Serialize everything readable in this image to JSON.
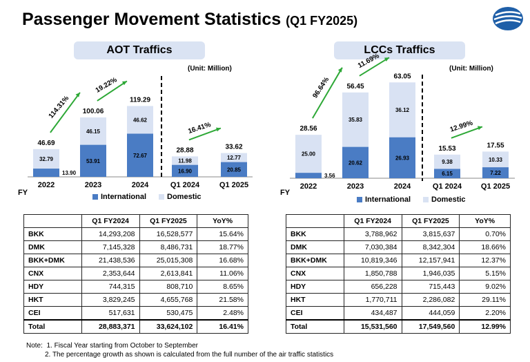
{
  "title": "Passenger Movement Statistics",
  "subtitle": "(Q1 FY2025)",
  "colors": {
    "international": "#4a7cc4",
    "domestic": "#d9e2f3",
    "arrow": "#2da836",
    "header_bg": "#dae3f3"
  },
  "aot": {
    "heading": "AOT Traffics",
    "unit": "(Unit: Million)",
    "fy_label": "FY",
    "legend": {
      "international": "International",
      "domestic": "Domestic"
    },
    "growth": [
      "114.31%",
      "19.22%",
      "16.41%"
    ],
    "table": {
      "headers": [
        "",
        "Q1 FY2024",
        "Q1 FY2025",
        "YoY%"
      ],
      "rows": [
        [
          "BKK",
          "14,293,208",
          "16,528,577",
          "15.64%"
        ],
        [
          "DMK",
          "7,145,328",
          "8,486,731",
          "18.77%"
        ],
        [
          "BKK+DMK",
          "21,438,536",
          "25,015,308",
          "16.68%"
        ],
        [
          "CNX",
          "2,353,644",
          "2,613,841",
          "11.06%"
        ],
        [
          "HDY",
          "744,315",
          "808,710",
          "8.65%"
        ],
        [
          "HKT",
          "3,829,245",
          "4,655,768",
          "21.58%"
        ],
        [
          "CEI",
          "517,631",
          "530,475",
          "2.48%"
        ],
        [
          "Total",
          "28,883,371",
          "33,624,102",
          "16.41%"
        ]
      ]
    }
  },
  "lcc": {
    "heading": "LCCs Traffics",
    "unit": "(Unit: Million)",
    "fy_label": "FY",
    "legend": {
      "international": "International",
      "domestic": "Domestic"
    },
    "growth": [
      "96.64%",
      "11.69%",
      "12.99%"
    ],
    "table": {
      "headers": [
        "",
        "Q1 FY2024",
        "Q1 FY2025",
        "YoY%"
      ],
      "rows": [
        [
          "BKK",
          "3,788,962",
          "3,815,637",
          "0.70%"
        ],
        [
          "DMK",
          "7,030,384",
          "8,342,304",
          "18.66%"
        ],
        [
          "BKK+DMK",
          "10,819,346",
          "12,157,941",
          "12.37%"
        ],
        [
          "CNX",
          "1,850,788",
          "1,946,035",
          "5.15%"
        ],
        [
          "HDY",
          "656,228",
          "715,443",
          "9.02%"
        ],
        [
          "HKT",
          "1,770,711",
          "2,286,082",
          "29.11%"
        ],
        [
          "CEI",
          "434,487",
          "444,059",
          "2.20%"
        ],
        [
          "Total",
          "15,531,560",
          "17,549,560",
          "12.99%"
        ]
      ]
    }
  },
  "notes": {
    "label": "Note:",
    "items": [
      "1.  Fiscal Year starting from October to September",
      "2. The percentage growth as shown is calculated from the full number of the air traffic statistics"
    ]
  },
  "chart_data": [
    {
      "type": "bar",
      "stacked": true,
      "title": "AOT Traffics",
      "unit": "Million",
      "categories": [
        "2022",
        "2023",
        "2024",
        "Q1 2024",
        "Q1 2025"
      ],
      "totals": [
        "46.69",
        "100.06",
        "119.29",
        "28.88",
        "33.62"
      ],
      "series": [
        {
          "name": "International",
          "values": [
            13.9,
            53.91,
            72.67,
            16.9,
            20.85
          ]
        },
        {
          "name": "Domestic",
          "values": [
            32.79,
            46.15,
            46.62,
            11.98,
            12.77
          ]
        }
      ]
    },
    {
      "type": "bar",
      "stacked": true,
      "title": "LCCs Traffics",
      "unit": "Million",
      "categories": [
        "2022",
        "2023",
        "2024",
        "Q1 2024",
        "Q1 2025"
      ],
      "totals": [
        "28.56",
        "56.45",
        "63.05",
        "15.53",
        "17.55"
      ],
      "series": [
        {
          "name": "International",
          "values": [
            3.56,
            20.62,
            26.93,
            6.15,
            7.22
          ]
        },
        {
          "name": "Domestic",
          "values": [
            25.0,
            35.83,
            36.12,
            9.38,
            10.33
          ]
        }
      ]
    }
  ]
}
